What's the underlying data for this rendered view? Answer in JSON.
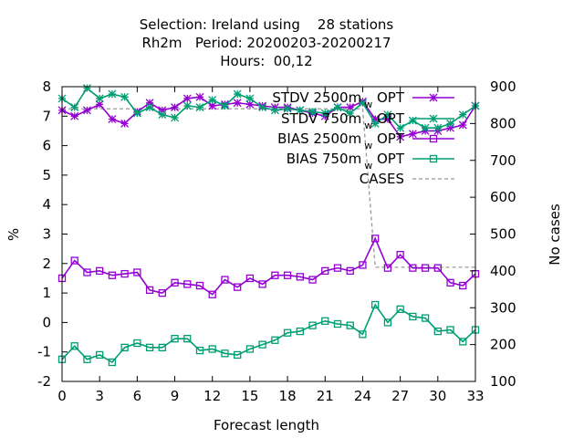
{
  "chart_data": {
    "type": "line",
    "title_lines": [
      "Selection: Ireland using    28 stations",
      "Rh2m   Period: 20200203-20200217",
      "Hours:  00,12"
    ],
    "xlabel": "Forecast length",
    "ylabel": "%",
    "y2label": "No cases",
    "xlim": [
      0,
      33
    ],
    "ylim": [
      -2,
      8
    ],
    "y2lim": [
      100,
      900
    ],
    "x_ticks": [
      0,
      3,
      6,
      9,
      12,
      15,
      18,
      21,
      24,
      27,
      30,
      33
    ],
    "y_ticks": [
      -2,
      -1,
      0,
      1,
      2,
      3,
      4,
      5,
      6,
      7,
      8
    ],
    "y2_ticks": [
      100,
      200,
      300,
      400,
      500,
      600,
      700,
      800,
      900
    ],
    "x": [
      0,
      1,
      2,
      3,
      4,
      5,
      6,
      7,
      8,
      9,
      10,
      11,
      12,
      13,
      14,
      15,
      16,
      17,
      18,
      19,
      20,
      21,
      22,
      23,
      24,
      25,
      26,
      27,
      28,
      29,
      30,
      31,
      32,
      33
    ],
    "legend": {
      "position": "top-right",
      "entries": [
        {
          "label": "STDV 2500m",
          "sub": "w",
          "suffix": " OPT"
        },
        {
          "label": "STDV 750m",
          "sub": "w",
          "suffix": " OPT"
        },
        {
          "label": "BIAS 2500m",
          "sub": "w",
          "suffix": " OPT"
        },
        {
          "label": "BIAS 750m",
          "sub": "w",
          "suffix": " OPT"
        },
        {
          "label": "CASES",
          "sub": "",
          "suffix": ""
        }
      ]
    },
    "series": [
      {
        "name": "STDV 2500m w OPT",
        "color": "#9400d3",
        "marker": "star",
        "axis": "y",
        "values": [
          7.2,
          7.0,
          7.2,
          7.4,
          6.9,
          6.75,
          7.15,
          7.45,
          7.2,
          7.3,
          7.6,
          7.65,
          7.35,
          7.4,
          7.45,
          7.4,
          7.35,
          7.3,
          7.3,
          7.2,
          7.1,
          7.0,
          7.3,
          7.3,
          7.5,
          6.9,
          6.9,
          6.3,
          6.4,
          6.5,
          6.5,
          6.6,
          6.7,
          7.35
        ]
      },
      {
        "name": "STDV 750m w OPT",
        "color": "#009e73",
        "marker": "star",
        "axis": "y",
        "values": [
          7.6,
          7.3,
          7.95,
          7.6,
          7.75,
          7.65,
          7.1,
          7.3,
          7.05,
          6.95,
          7.35,
          7.3,
          7.55,
          7.35,
          7.75,
          7.6,
          7.3,
          7.2,
          7.25,
          7.2,
          7.15,
          7.1,
          7.3,
          7.1,
          7.45,
          6.75,
          7.05,
          6.6,
          6.85,
          6.6,
          6.6,
          6.75,
          7.05,
          7.35
        ]
      },
      {
        "name": "BIAS 2500m w OPT",
        "color": "#9400d3",
        "marker": "square",
        "axis": "y",
        "values": [
          1.5,
          2.1,
          1.7,
          1.75,
          1.6,
          1.65,
          1.7,
          1.1,
          1.0,
          1.35,
          1.3,
          1.25,
          0.95,
          1.45,
          1.2,
          1.5,
          1.3,
          1.6,
          1.6,
          1.55,
          1.45,
          1.75,
          1.85,
          1.75,
          1.95,
          2.85,
          1.85,
          2.3,
          1.85,
          1.85,
          1.85,
          1.35,
          1.25,
          1.65
        ]
      },
      {
        "name": "BIAS 750m w OPT",
        "color": "#009e73",
        "marker": "square",
        "axis": "y",
        "values": [
          -1.25,
          -0.8,
          -1.25,
          -1.1,
          -1.35,
          -0.85,
          -0.7,
          -0.85,
          -0.85,
          -0.55,
          -0.55,
          -0.95,
          -0.9,
          -1.05,
          -1.1,
          -0.9,
          -0.75,
          -0.6,
          -0.35,
          -0.3,
          -0.1,
          0.05,
          -0.05,
          -0.1,
          -0.4,
          0.6,
          0.0,
          0.45,
          0.2,
          0.15,
          -0.3,
          -0.25,
          -0.65,
          -0.25
        ]
      },
      {
        "name": "CASES",
        "color": "#999999",
        "marker": "none",
        "dash": true,
        "axis": "y2",
        "values": [
          840,
          840,
          840,
          840,
          840,
          840,
          840,
          840,
          840,
          840,
          840,
          840,
          840,
          840,
          840,
          840,
          840,
          840,
          840,
          840,
          840,
          840,
          840,
          840,
          840,
          410,
          410,
          410,
          410,
          410,
          410,
          410,
          410,
          410
        ]
      }
    ]
  }
}
